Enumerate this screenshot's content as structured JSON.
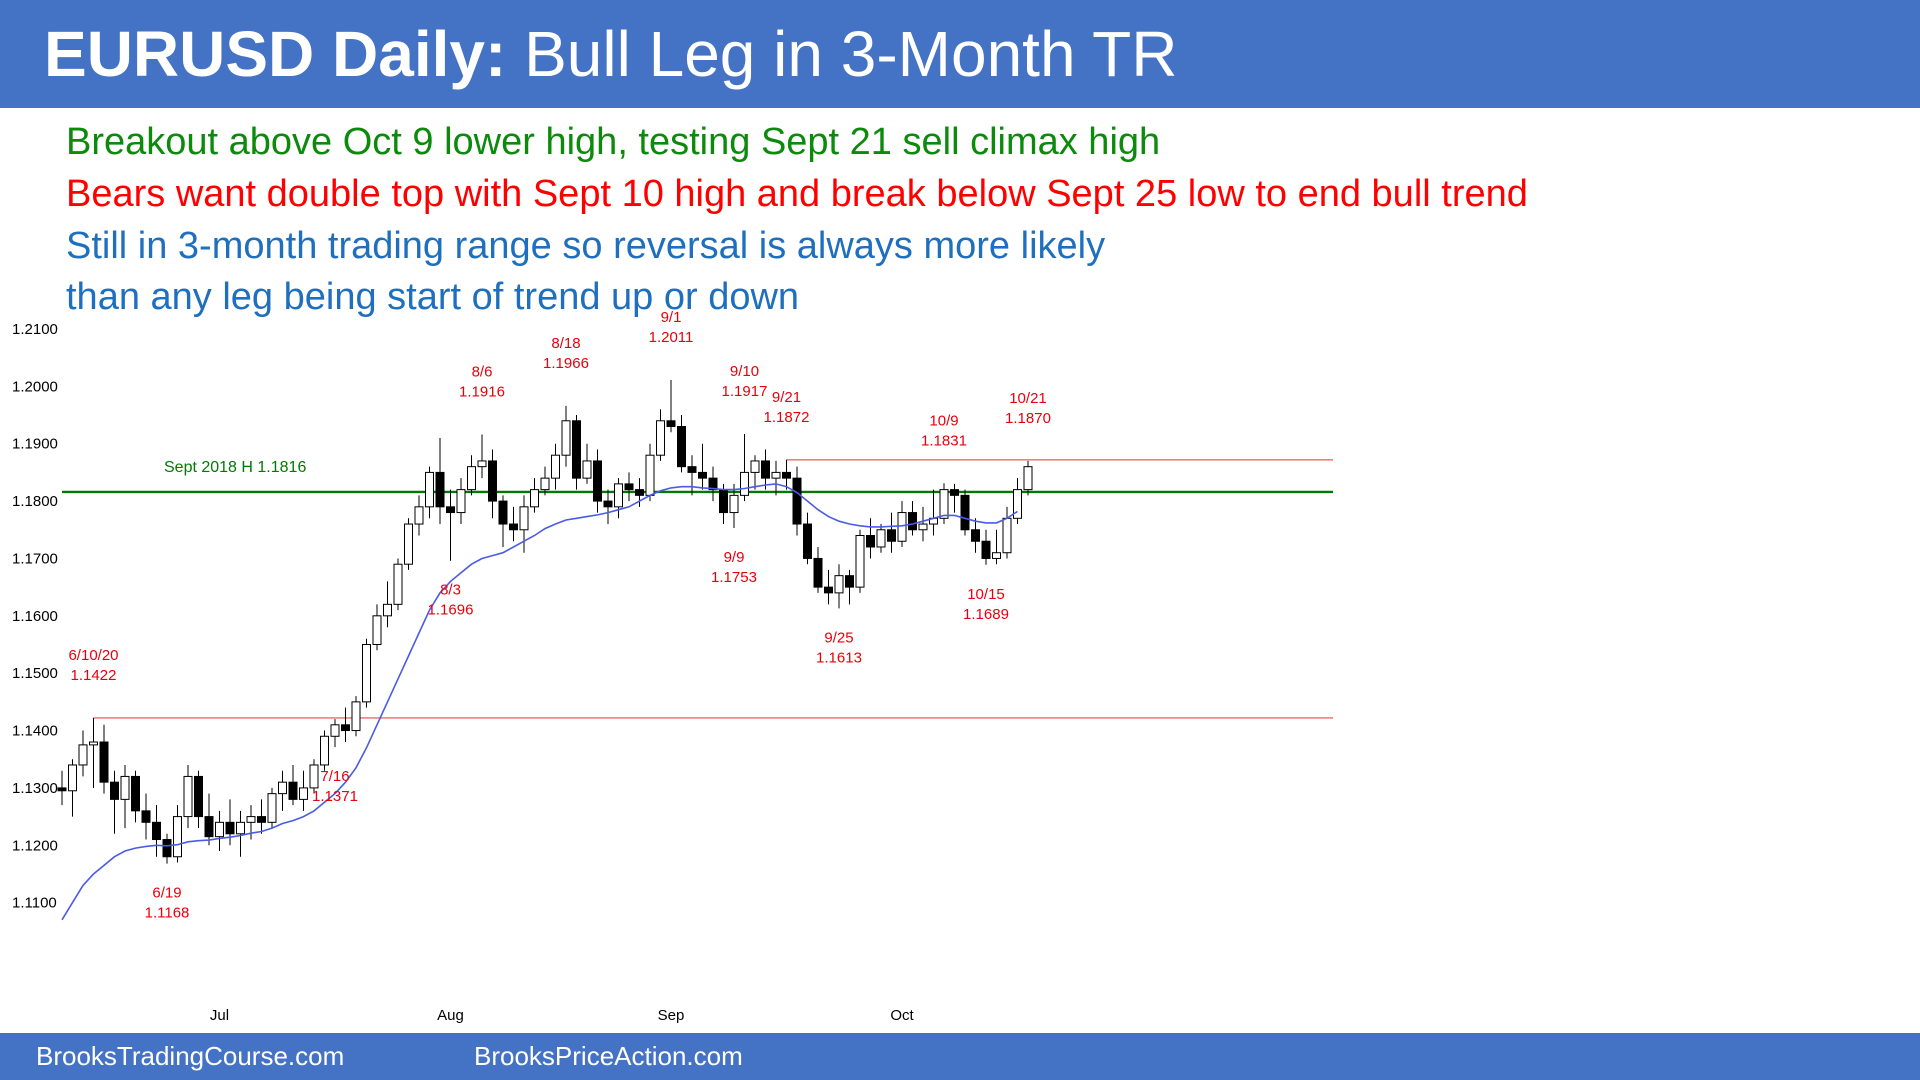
{
  "header": {
    "title_bold": "EURUSD Daily:",
    "title_rest": " Bull Leg in 3-Month TR"
  },
  "notes": [
    {
      "text": "Breakout above Oct 9 lower high, testing Sept 21 sell climax high",
      "color": "#0B8A0B"
    },
    {
      "text": "Bears want double top with Sept 10 high and break below Sept 25 low to end bull trend",
      "color": "#FF0000"
    },
    {
      "text": "Still in 3-month trading range so reversal is always more likely",
      "color": "#1F6FBF"
    },
    {
      "text": "than any leg being start of trend up or down",
      "color": "#1F6FBF"
    }
  ],
  "footer": {
    "link_1": "BrooksTradingCourse.com",
    "link_2": "BrooksPriceAction.com"
  },
  "chart_data": {
    "type": "candlestick",
    "ylim": [
      1.1,
      1.21
    ],
    "yticks": [
      "1.2100",
      "1.2000",
      "1.1900",
      "1.1800",
      "1.1700",
      "1.1600",
      "1.1500",
      "1.1400",
      "1.1300",
      "1.1200",
      "1.1100"
    ],
    "xticks": [
      {
        "label": "Jul",
        "index": 15
      },
      {
        "label": "Aug",
        "index": 37
      },
      {
        "label": "Sep",
        "index": 58
      },
      {
        "label": "Oct",
        "index": 80
      }
    ],
    "colors": {
      "up": "#ffffff",
      "down": "#000000",
      "ema": "#4A5BE8",
      "support": "#007A00",
      "resistance": "#F08080",
      "label": "#E8000B"
    },
    "candles": [
      [
        1.13,
        1.133,
        1.127,
        1.1295
      ],
      [
        1.1295,
        1.135,
        1.125,
        1.134
      ],
      [
        1.134,
        1.14,
        1.132,
        1.1375
      ],
      [
        1.1375,
        1.1422,
        1.13,
        1.138
      ],
      [
        1.138,
        1.141,
        1.129,
        1.131
      ],
      [
        1.131,
        1.133,
        1.122,
        1.128
      ],
      [
        1.128,
        1.134,
        1.123,
        1.132
      ],
      [
        1.132,
        1.133,
        1.124,
        1.126
      ],
      [
        1.126,
        1.129,
        1.121,
        1.124
      ],
      [
        1.124,
        1.127,
        1.118,
        1.121
      ],
      [
        1.121,
        1.122,
        1.1168,
        1.118
      ],
      [
        1.118,
        1.127,
        1.117,
        1.125
      ],
      [
        1.125,
        1.134,
        1.123,
        1.132
      ],
      [
        1.132,
        1.133,
        1.123,
        1.125
      ],
      [
        1.125,
        1.129,
        1.12,
        1.1215
      ],
      [
        1.1215,
        1.126,
        1.119,
        1.124
      ],
      [
        1.124,
        1.128,
        1.12,
        1.122
      ],
      [
        1.122,
        1.126,
        1.118,
        1.124
      ],
      [
        1.124,
        1.127,
        1.121,
        1.125
      ],
      [
        1.125,
        1.128,
        1.122,
        1.124
      ],
      [
        1.124,
        1.13,
        1.123,
        1.129
      ],
      [
        1.129,
        1.133,
        1.126,
        1.131
      ],
      [
        1.131,
        1.134,
        1.127,
        1.128
      ],
      [
        1.128,
        1.133,
        1.126,
        1.13
      ],
      [
        1.13,
        1.135,
        1.129,
        1.134
      ],
      [
        1.134,
        1.14,
        1.133,
        1.139
      ],
      [
        1.139,
        1.142,
        1.1371,
        1.141
      ],
      [
        1.141,
        1.144,
        1.138,
        1.14
      ],
      [
        1.14,
        1.146,
        1.139,
        1.145
      ],
      [
        1.145,
        1.156,
        1.144,
        1.155
      ],
      [
        1.155,
        1.162,
        1.154,
        1.16
      ],
      [
        1.16,
        1.166,
        1.158,
        1.162
      ],
      [
        1.162,
        1.17,
        1.161,
        1.169
      ],
      [
        1.169,
        1.177,
        1.168,
        1.176
      ],
      [
        1.176,
        1.181,
        1.174,
        1.179
      ],
      [
        1.179,
        1.186,
        1.177,
        1.185
      ],
      [
        1.185,
        1.191,
        1.176,
        1.179
      ],
      [
        1.179,
        1.182,
        1.1696,
        1.178
      ],
      [
        1.178,
        1.184,
        1.176,
        1.182
      ],
      [
        1.182,
        1.188,
        1.181,
        1.186
      ],
      [
        1.186,
        1.1916,
        1.184,
        1.187
      ],
      [
        1.187,
        1.189,
        1.177,
        1.18
      ],
      [
        1.18,
        1.181,
        1.172,
        1.176
      ],
      [
        1.176,
        1.179,
        1.173,
        1.175
      ],
      [
        1.175,
        1.181,
        1.171,
        1.179
      ],
      [
        1.179,
        1.184,
        1.178,
        1.182
      ],
      [
        1.182,
        1.186,
        1.181,
        1.184
      ],
      [
        1.184,
        1.19,
        1.182,
        1.188
      ],
      [
        1.188,
        1.1966,
        1.186,
        1.194
      ],
      [
        1.194,
        1.195,
        1.182,
        1.184
      ],
      [
        1.184,
        1.19,
        1.183,
        1.187
      ],
      [
        1.187,
        1.189,
        1.178,
        1.18
      ],
      [
        1.18,
        1.182,
        1.176,
        1.179
      ],
      [
        1.179,
        1.184,
        1.177,
        1.183
      ],
      [
        1.183,
        1.185,
        1.18,
        1.182
      ],
      [
        1.182,
        1.184,
        1.179,
        1.181
      ],
      [
        1.181,
        1.19,
        1.18,
        1.188
      ],
      [
        1.188,
        1.196,
        1.187,
        1.194
      ],
      [
        1.194,
        1.2011,
        1.192,
        1.193
      ],
      [
        1.193,
        1.195,
        1.185,
        1.186
      ],
      [
        1.186,
        1.188,
        1.181,
        1.185
      ],
      [
        1.185,
        1.19,
        1.182,
        1.184
      ],
      [
        1.184,
        1.186,
        1.18,
        1.182
      ],
      [
        1.182,
        1.183,
        1.176,
        1.178
      ],
      [
        1.178,
        1.183,
        1.1753,
        1.181
      ],
      [
        1.181,
        1.1917,
        1.18,
        1.185
      ],
      [
        1.185,
        1.188,
        1.182,
        1.187
      ],
      [
        1.187,
        1.189,
        1.182,
        1.184
      ],
      [
        1.184,
        1.187,
        1.181,
        1.185
      ],
      [
        1.185,
        1.1872,
        1.182,
        1.184
      ],
      [
        1.184,
        1.186,
        1.174,
        1.176
      ],
      [
        1.176,
        1.178,
        1.169,
        1.17
      ],
      [
        1.17,
        1.172,
        1.164,
        1.165
      ],
      [
        1.165,
        1.168,
        1.162,
        1.164
      ],
      [
        1.164,
        1.169,
        1.1613,
        1.167
      ],
      [
        1.167,
        1.168,
        1.162,
        1.165
      ],
      [
        1.165,
        1.175,
        1.164,
        1.174
      ],
      [
        1.174,
        1.177,
        1.17,
        1.172
      ],
      [
        1.172,
        1.176,
        1.171,
        1.175
      ],
      [
        1.175,
        1.178,
        1.171,
        1.173
      ],
      [
        1.173,
        1.18,
        1.172,
        1.178
      ],
      [
        1.178,
        1.18,
        1.174,
        1.175
      ],
      [
        1.175,
        1.179,
        1.173,
        1.176
      ],
      [
        1.176,
        1.182,
        1.174,
        1.177
      ],
      [
        1.177,
        1.1831,
        1.176,
        1.182
      ],
      [
        1.182,
        1.183,
        1.178,
        1.181
      ],
      [
        1.181,
        1.182,
        1.174,
        1.175
      ],
      [
        1.175,
        1.177,
        1.171,
        1.173
      ],
      [
        1.173,
        1.175,
        1.1689,
        1.17
      ],
      [
        1.17,
        1.175,
        1.169,
        1.171
      ],
      [
        1.171,
        1.179,
        1.17,
        1.177
      ],
      [
        1.177,
        1.184,
        1.176,
        1.182
      ],
      [
        1.182,
        1.187,
        1.181,
        1.186
      ]
    ],
    "ema": [
      1.107,
      1.11,
      1.113,
      1.115,
      1.1165,
      1.118,
      1.119,
      1.1195,
      1.1198,
      1.12,
      1.1199,
      1.1201,
      1.1206,
      1.1208,
      1.1209,
      1.1212,
      1.1214,
      1.1217,
      1.1221,
      1.1224,
      1.123,
      1.1238,
      1.1243,
      1.125,
      1.126,
      1.1275,
      1.129,
      1.131,
      1.1335,
      1.137,
      1.141,
      1.145,
      1.149,
      1.153,
      1.157,
      1.161,
      1.164,
      1.166,
      1.1675,
      1.169,
      1.17,
      1.1705,
      1.171,
      1.172,
      1.173,
      1.174,
      1.1752,
      1.176,
      1.1767,
      1.177,
      1.1773,
      1.1776,
      1.178,
      1.1785,
      1.179,
      1.18,
      1.181,
      1.1818,
      1.1823,
      1.1825,
      1.1825,
      1.1823,
      1.1822,
      1.182,
      1.182,
      1.1822,
      1.1825,
      1.1828,
      1.183,
      1.1825,
      1.1815,
      1.18,
      1.1785,
      1.1773,
      1.1765,
      1.176,
      1.1757,
      1.1755,
      1.1755,
      1.1756,
      1.1757,
      1.176,
      1.1765,
      1.177,
      1.1775,
      1.1775,
      1.177,
      1.1765,
      1.1762,
      1.1762,
      1.177,
      1.1782
    ],
    "hlines": [
      {
        "kind": "support",
        "y": 1.1816,
        "start": 0,
        "end": 1,
        "label": "Sept 2018 H 1.1816"
      },
      {
        "kind": "resistance",
        "y": 1.1422,
        "start": 3,
        "end": 1
      },
      {
        "kind": "resistance",
        "y": 1.1872,
        "start": 69,
        "end": 1
      }
    ],
    "annotations": [
      {
        "date": "6/10/20",
        "price": "1.1422",
        "index": 3,
        "value": 1.1422,
        "pos": "above"
      },
      {
        "date": "6/19",
        "price": "1.1168",
        "index": 10,
        "value": 1.1168,
        "pos": "below"
      },
      {
        "date": "7/16",
        "price": "1.1371",
        "index": 26,
        "value": 1.1371,
        "pos": "below"
      },
      {
        "date": "8/3",
        "price": "1.1696",
        "index": 37,
        "value": 1.1696,
        "pos": "below"
      },
      {
        "date": "8/6",
        "price": "1.1916",
        "index": 40,
        "value": 1.1916,
        "pos": "above"
      },
      {
        "date": "8/18",
        "price": "1.1966",
        "index": 48,
        "value": 1.1966,
        "pos": "above"
      },
      {
        "date": "9/1",
        "price": "1.2011",
        "index": 58,
        "value": 1.2011,
        "pos": "above"
      },
      {
        "date": "9/9",
        "price": "1.1753",
        "index": 64,
        "value": 1.1753,
        "pos": "below"
      },
      {
        "date": "9/10",
        "price": "1.1917",
        "index": 65,
        "value": 1.1917,
        "pos": "above"
      },
      {
        "date": "9/21",
        "price": "1.1872",
        "index": 69,
        "value": 1.1872,
        "pos": "above"
      },
      {
        "date": "9/25",
        "price": "1.1613",
        "index": 74,
        "value": 1.1613,
        "pos": "below"
      },
      {
        "date": "10/9",
        "price": "1.1831",
        "index": 84,
        "value": 1.1831,
        "pos": "above"
      },
      {
        "date": "10/15",
        "price": "1.1689",
        "index": 88,
        "value": 1.1689,
        "pos": "below"
      },
      {
        "date": "10/21",
        "price": "1.1870",
        "index": 92,
        "value": 1.187,
        "pos": "above"
      }
    ]
  }
}
